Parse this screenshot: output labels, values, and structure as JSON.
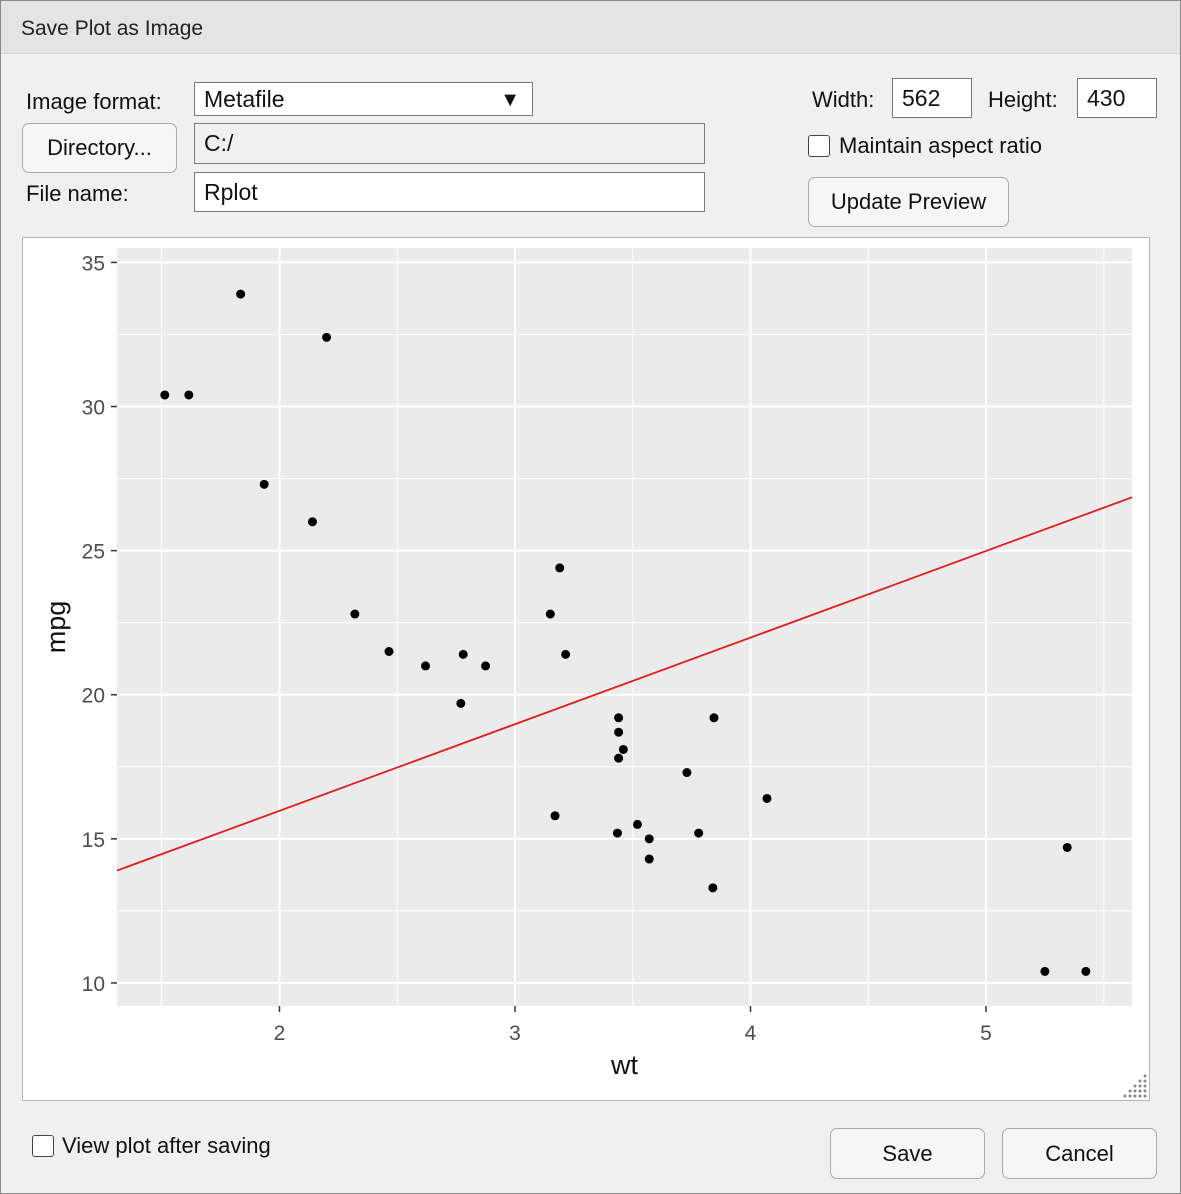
{
  "dialog": {
    "title": "Save Plot as Image"
  },
  "format": {
    "label": "Image format:",
    "value": "Metafile"
  },
  "directory": {
    "button_label": "Directory...",
    "value": "C:/"
  },
  "filename": {
    "label": "File name:",
    "value": "Rplot"
  },
  "size": {
    "width_label": "Width:",
    "width_value": "562",
    "height_label": "Height:",
    "height_value": "430"
  },
  "aspect": {
    "label": "Maintain aspect ratio",
    "checked": false
  },
  "update_button": "Update Preview",
  "view_after": {
    "label": "View plot after saving",
    "checked": false
  },
  "buttons": {
    "save": "Save",
    "cancel": "Cancel"
  },
  "chart_data": {
    "type": "scatter",
    "xlabel": "wt",
    "ylabel": "mpg",
    "xlim": [
      1.31,
      5.62
    ],
    "ylim": [
      9.2,
      35.5
    ],
    "xticks": [
      "2",
      "3",
      "4",
      "5"
    ],
    "yticks": [
      "10",
      "15",
      "20",
      "25",
      "30",
      "35"
    ],
    "grid": true,
    "points": [
      [
        2.62,
        21.0
      ],
      [
        2.875,
        21.0
      ],
      [
        2.32,
        22.8
      ],
      [
        3.215,
        21.4
      ],
      [
        3.44,
        18.7
      ],
      [
        3.46,
        18.1
      ],
      [
        3.57,
        14.3
      ],
      [
        3.19,
        24.4
      ],
      [
        3.15,
        22.8
      ],
      [
        3.44,
        19.2
      ],
      [
        3.44,
        17.8
      ],
      [
        4.07,
        16.4
      ],
      [
        3.73,
        17.3
      ],
      [
        3.78,
        15.2
      ],
      [
        5.25,
        10.4
      ],
      [
        5.424,
        10.4
      ],
      [
        5.345,
        14.7
      ],
      [
        2.2,
        32.4
      ],
      [
        1.615,
        30.4
      ],
      [
        1.835,
        33.9
      ],
      [
        2.465,
        21.5
      ],
      [
        3.52,
        15.5
      ],
      [
        3.435,
        15.2
      ],
      [
        3.84,
        13.3
      ],
      [
        3.845,
        19.2
      ],
      [
        1.935,
        27.3
      ],
      [
        2.14,
        26.0
      ],
      [
        1.513,
        30.4
      ],
      [
        3.17,
        15.8
      ],
      [
        2.77,
        19.7
      ],
      [
        3.57,
        15.0
      ],
      [
        2.78,
        21.4
      ]
    ],
    "trend_line": {
      "x": [
        1.31,
        5.62
      ],
      "y": [
        13.9,
        26.85
      ],
      "color": "#e41a1c"
    },
    "colors": {
      "panel": "#ebebeb",
      "grid": "#ffffff",
      "point": "#000000"
    }
  }
}
